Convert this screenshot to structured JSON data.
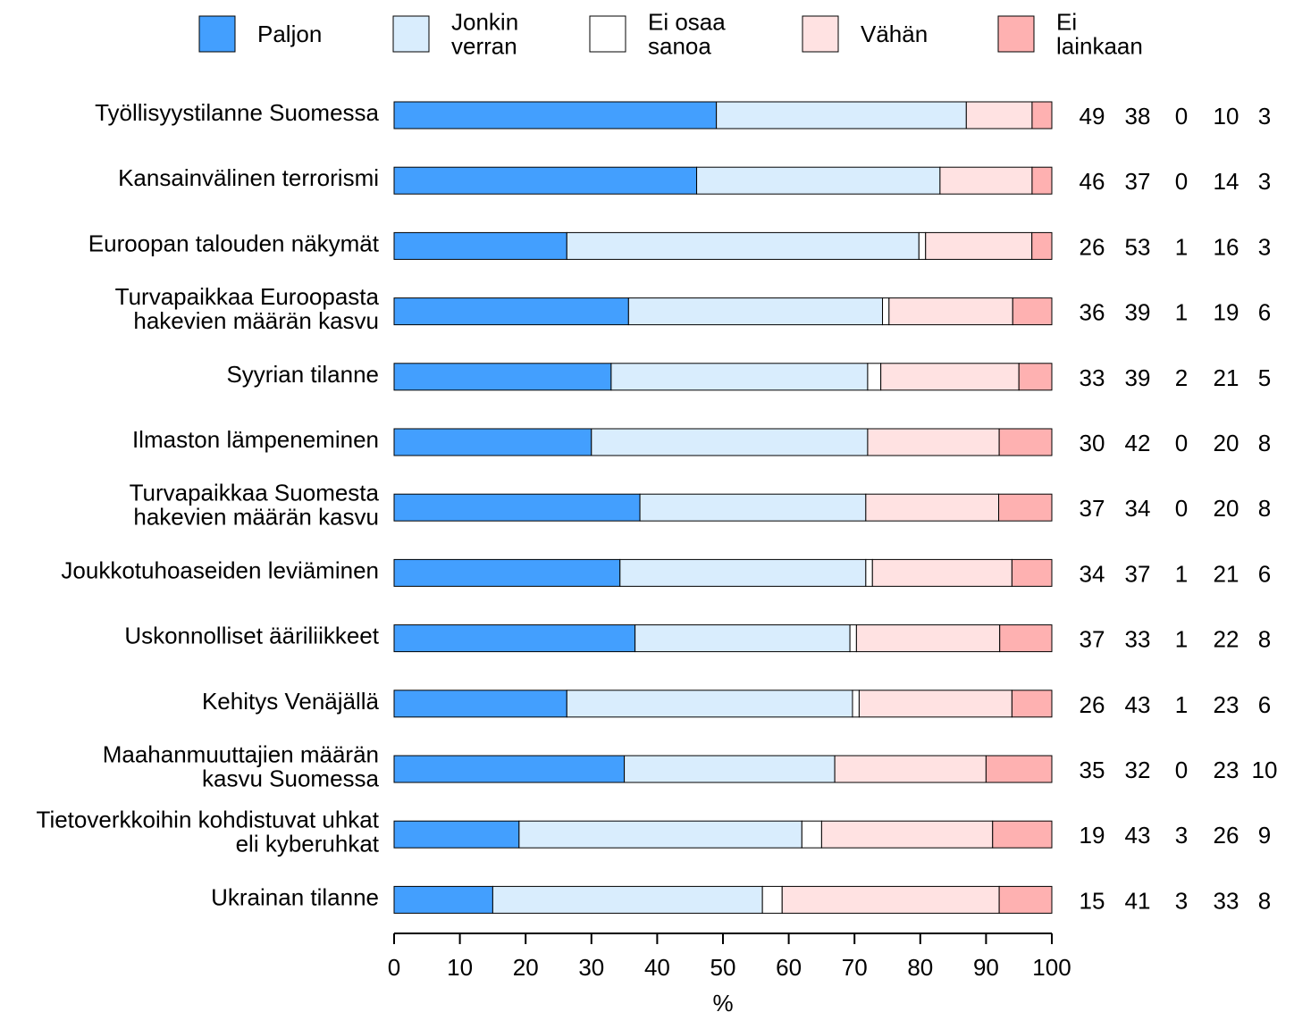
{
  "colors": {
    "paljon": "#439ffe",
    "jonkin_verran": "#d9edfd",
    "ei_osaa_sanoa": "#ffffff",
    "vahan": "#ffe2e2",
    "ei_lainkaan": "#feb1b1"
  },
  "chart_data": {
    "type": "bar",
    "orientation": "horizontal",
    "stacked": true,
    "xlabel": "%",
    "ylabel": "",
    "xlim": [
      0,
      100
    ],
    "xticks": [
      "0",
      "10",
      "20",
      "30",
      "40",
      "50",
      "60",
      "70",
      "80",
      "90",
      "100"
    ],
    "grid": false,
    "legend_position": "top",
    "categories": [
      [
        "Työllisyystilanne Suomessa"
      ],
      [
        "Kansainvälinen terrorismi"
      ],
      [
        "Euroopan talouden näkymät"
      ],
      [
        "Turvapaikkaa Euroopasta",
        "hakevien määrän kasvu"
      ],
      [
        "Syyrian tilanne"
      ],
      [
        "Ilmaston lämpeneminen"
      ],
      [
        "Turvapaikkaa Suomesta",
        "hakevien määrän kasvu"
      ],
      [
        "Joukkotuhoaseiden leviäminen"
      ],
      [
        "Uskonnolliset ääriliikkeet"
      ],
      [
        "Kehitys Venäjällä"
      ],
      [
        "Maahanmuuttajien määrän",
        "kasvu Suomessa"
      ],
      [
        "Tietoverkkoihin kohdistuvat uhkat",
        "eli kyberuhkat"
      ],
      [
        "Ukrainan tilanne"
      ]
    ],
    "series": [
      {
        "name": [
          "Paljon"
        ],
        "color_key": "paljon",
        "values": [
          49,
          46,
          26,
          36,
          33,
          30,
          37,
          34,
          37,
          26,
          35,
          19,
          15
        ]
      },
      {
        "name": [
          "Jonkin",
          "verran"
        ],
        "color_key": "jonkin_verran",
        "values": [
          38,
          37,
          53,
          39,
          39,
          42,
          34,
          37,
          33,
          43,
          32,
          43,
          41
        ]
      },
      {
        "name": [
          "Ei osaa",
          "sanoa"
        ],
        "color_key": "ei_osaa_sanoa",
        "values": [
          0,
          0,
          1,
          1,
          2,
          0,
          0,
          1,
          1,
          1,
          0,
          3,
          3
        ]
      },
      {
        "name": [
          "Vähän"
        ],
        "color_key": "vahan",
        "values": [
          10,
          14,
          16,
          19,
          21,
          20,
          20,
          21,
          22,
          23,
          23,
          26,
          33
        ]
      },
      {
        "name": [
          "Ei",
          "lainkaan"
        ],
        "color_key": "ei_lainkaan",
        "values": [
          3,
          3,
          3,
          6,
          5,
          8,
          8,
          6,
          8,
          6,
          10,
          9,
          8
        ]
      }
    ],
    "value_labels": [
      [
        "49",
        "38",
        "0",
        "10",
        "3"
      ],
      [
        "46",
        "37",
        "0",
        "14",
        "3"
      ],
      [
        "26",
        "53",
        "1",
        "16",
        "3"
      ],
      [
        "36",
        "39",
        "1",
        "19",
        "6"
      ],
      [
        "33",
        "39",
        "2",
        "21",
        "5"
      ],
      [
        "30",
        "42",
        "0",
        "20",
        "8"
      ],
      [
        "37",
        "34",
        "0",
        "20",
        "8"
      ],
      [
        "34",
        "37",
        "1",
        "21",
        "6"
      ],
      [
        "37",
        "33",
        "1",
        "22",
        "8"
      ],
      [
        "26",
        "43",
        "1",
        "23",
        "6"
      ],
      [
        "35",
        "32",
        "0",
        "23",
        "10"
      ],
      [
        "19",
        "43",
        "3",
        "26",
        "9"
      ],
      [
        "15",
        "41",
        "3",
        "33",
        "8"
      ]
    ]
  }
}
